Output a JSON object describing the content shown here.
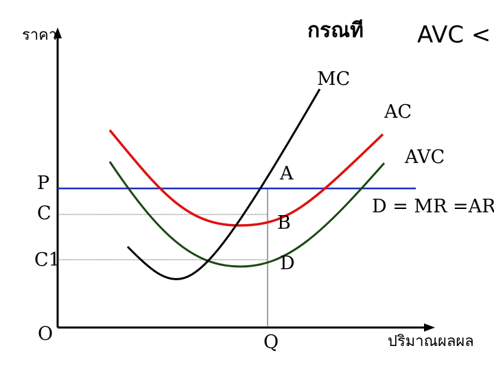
{
  "header": {
    "axis_y_label": "ราคา",
    "case_title": "กรณที",
    "condition": "AVC <"
  },
  "curves": {
    "mc": "MC",
    "ac": "AC",
    "avc": "AVC",
    "demand": "D = MR =AR"
  },
  "points": {
    "a": "A",
    "b": "B",
    "d": "D"
  },
  "axis": {
    "p": "P",
    "c": "C",
    "c1": "C1",
    "origin": "O",
    "q": "Q",
    "x_label": "ปริมาณผลผล"
  },
  "colors": {
    "mc": "#000000",
    "ac": "#e01010",
    "avc": "#1a4a12",
    "demand": "#1a2fc0",
    "axes": "#000000"
  }
}
